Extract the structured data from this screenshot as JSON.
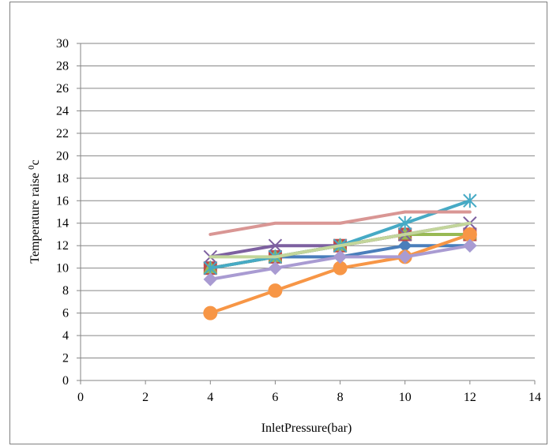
{
  "chart_data": {
    "type": "line",
    "xlabel": "InletPressure(bar)",
    "ylabel": "Temperature raise",
    "ylabel_sup": "0",
    "ylabel_unit": "c",
    "xlim": [
      0,
      14
    ],
    "ylim": [
      0,
      30
    ],
    "xticks": [
      0,
      2,
      4,
      6,
      8,
      10,
      12,
      14
    ],
    "yticks": [
      0,
      2,
      4,
      6,
      8,
      10,
      12,
      14,
      16,
      18,
      20,
      22,
      24,
      26,
      28,
      30
    ],
    "grid": "horizontal",
    "legend": "none",
    "x": [
      4,
      6,
      8,
      10,
      12
    ],
    "series": [
      {
        "values": [
          10,
          11,
          11,
          12,
          12
        ],
        "color": "#4a7ebb",
        "marker": "diamond"
      },
      {
        "values": [
          10,
          11,
          12,
          13,
          13
        ],
        "color": "#be4b48",
        "marker": "square"
      },
      {
        "values": [
          10,
          11,
          12,
          13,
          13
        ],
        "color": "#98b954",
        "marker": "triangle"
      },
      {
        "values": [
          11,
          12,
          12,
          13,
          14
        ],
        "color": "#7d60a0",
        "marker": "x"
      },
      {
        "values": [
          10,
          11,
          12,
          14,
          16
        ],
        "color": "#46aac5",
        "marker": "star"
      },
      {
        "values": [
          6,
          8,
          10,
          11,
          13
        ],
        "color": "#f79646",
        "marker": "circle"
      },
      {
        "values": [
          9,
          10,
          11,
          11,
          12
        ],
        "color": "#a99bd2",
        "marker": "diamond"
      },
      {
        "values": [
          13,
          14,
          14,
          15,
          15
        ],
        "color": "#d99694",
        "marker": "none"
      },
      {
        "values": [
          11,
          11,
          12,
          13,
          14
        ],
        "color": "#c3d69b",
        "marker": "none"
      }
    ]
  }
}
